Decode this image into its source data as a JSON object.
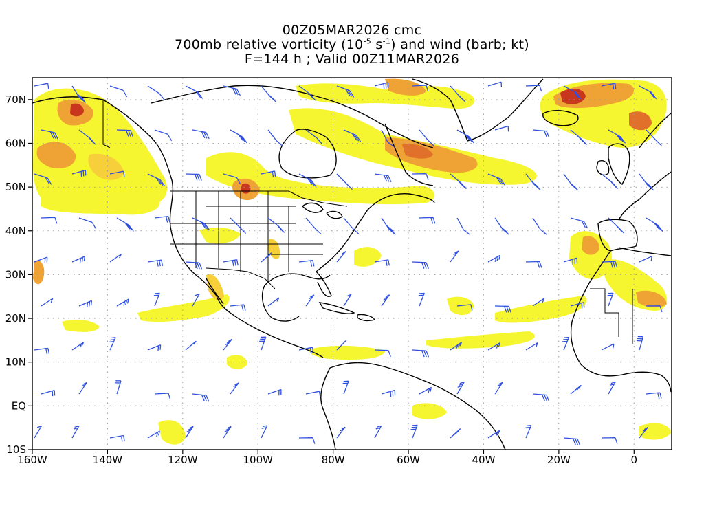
{
  "header": {
    "line1": "00Z05MAR2026 cmc",
    "line2_prefix": "700mb relative vorticity (10",
    "line2_exp1": "-5",
    "line2_mid": " s",
    "line2_exp2": "-1",
    "line2_suffix": ") and wind (barb; kt)",
    "line3": "F=144 h ; Valid 00Z11MAR2026"
  },
  "map": {
    "lon_range": [
      -160,
      10
    ],
    "lat_range": [
      -10,
      75
    ],
    "x_ticks": [
      {
        "lon": -160,
        "label": "160W"
      },
      {
        "lon": -140,
        "label": "140W"
      },
      {
        "lon": -120,
        "label": "120W"
      },
      {
        "lon": -100,
        "label": "100W"
      },
      {
        "lon": -80,
        "label": "80W"
      },
      {
        "lon": -60,
        "label": "60W"
      },
      {
        "lon": -40,
        "label": "40W"
      },
      {
        "lon": -20,
        "label": "20W"
      },
      {
        "lon": 0,
        "label": "0"
      }
    ],
    "y_ticks": [
      {
        "lat": 70,
        "label": "70N"
      },
      {
        "lat": 60,
        "label": "60N"
      },
      {
        "lat": 50,
        "label": "50N"
      },
      {
        "lat": 40,
        "label": "40N"
      },
      {
        "lat": 30,
        "label": "30N"
      },
      {
        "lat": 20,
        "label": "20N"
      },
      {
        "lat": 10,
        "label": "10N"
      },
      {
        "lat": 0,
        "label": "EQ"
      },
      {
        "lat": -10,
        "label": "10S"
      }
    ],
    "colors": {
      "yellow": "#f5f530",
      "light_orange": "#f7cf3a",
      "orange": "#f0a335",
      "dark_orange": "#e0702a",
      "red": "#c8361e",
      "barb": "#3050e0",
      "coast": "#000000",
      "grid": "#9a9a9a"
    },
    "grid": "dotted"
  }
}
